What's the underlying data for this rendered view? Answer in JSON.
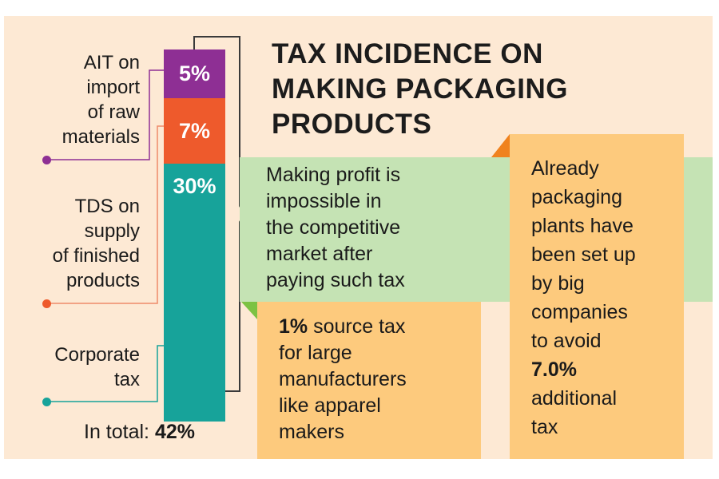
{
  "chart_data": {
    "type": "bar",
    "stacked": true,
    "title": "TAX INCIDENCE ON MAKING PACKAGING PRODUCTS",
    "title_lines": [
      "TAX INCIDENCE ON",
      "MAKING PACKAGING",
      "PRODUCTS"
    ],
    "segments": [
      {
        "name": "AIT on import of raw materials",
        "label_lines": [
          "AIT on",
          "import",
          "of raw",
          "materials"
        ],
        "value": 5,
        "value_label": "5%",
        "color": "#8e2f94"
      },
      {
        "name": "TDS on supply of finished products",
        "label_lines": [
          "TDS on",
          "supply",
          "of finished",
          "products"
        ],
        "value": 7,
        "value_label": "7%",
        "color": "#ee5a2c"
      },
      {
        "name": "Corporate tax",
        "label_lines": [
          "Corporate",
          "tax"
        ],
        "value": 30,
        "value_label": "30%",
        "color": "#17a39a"
      }
    ],
    "total": {
      "prefix": "In total: ",
      "value": "42%"
    }
  },
  "notes": {
    "green_lines": [
      "Making profit is",
      "impossible in",
      "the competitive",
      "market after",
      "paying such tax"
    ],
    "source_tax": {
      "bold": "1%",
      "first_rest": " source tax",
      "lines": [
        "for large",
        "manufacturers",
        "like apparel",
        "makers"
      ]
    },
    "already_lines": [
      "Already",
      "packaging",
      "plants have",
      "been set up",
      "by big",
      "companies",
      "to avoid"
    ],
    "already_bold": "7.0%",
    "already_tail": [
      "additional",
      "tax"
    ]
  },
  "colors": {
    "background": "#fde9d4",
    "green": "#c5e3b4",
    "orange_box": "#fdca7d",
    "accent_orange": "#f0821e",
    "accent_green": "#7cc243"
  }
}
